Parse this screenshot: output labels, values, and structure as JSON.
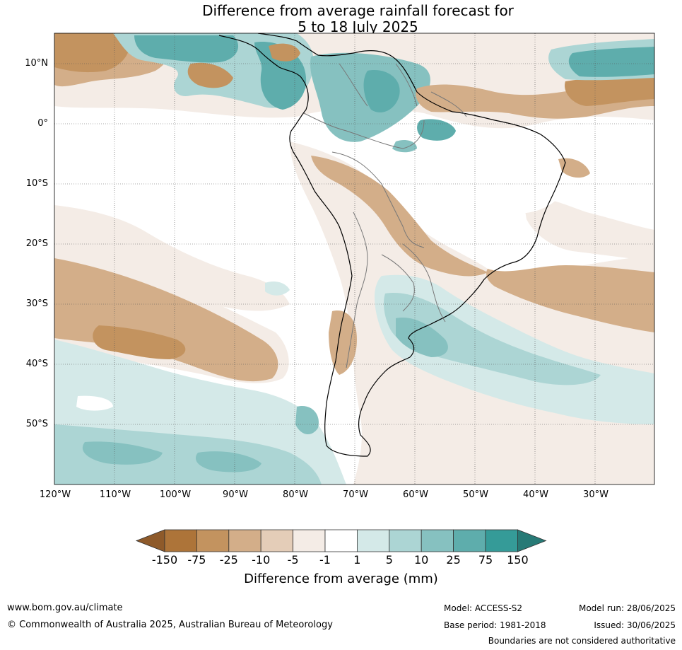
{
  "title_line1": "Difference from average rainfall forecast for",
  "title_line2": "5 to 18 July 2025",
  "lat_labels": [
    "10°N",
    "0°",
    "10°S",
    "20°S",
    "30°S",
    "40°S",
    "50°S"
  ],
  "lon_labels": [
    "120°W",
    "110°W",
    "100°W",
    "90°W",
    "80°W",
    "70°W",
    "60°W",
    "50°W",
    "40°W",
    "30°W"
  ],
  "colorbar": {
    "ticks": [
      "-150",
      "-75",
      "-25",
      "-10",
      "-5",
      "-1",
      "1",
      "5",
      "10",
      "25",
      "75",
      "150"
    ],
    "colors": [
      "#8e5a2a",
      "#ad7439",
      "#c3935f",
      "#d3ae89",
      "#e4cdb8",
      "#f4ece6",
      "#ffffff",
      "#d4e9e8",
      "#acd5d4",
      "#86c1c0",
      "#5eadac",
      "#359b98",
      "#277a76"
    ],
    "label": "Difference from average (mm)"
  },
  "footer": {
    "website": "www.bom.gov.au/climate",
    "copyright": "© Commonwealth of Australia 2025, Australian Bureau of Meteorology",
    "model": "Model: ACCESS-S2",
    "base_period": "Base period: 1981-2018",
    "model_run": "Model run: 28/06/2025",
    "issued": "Issued: 30/06/2025",
    "disclaimer": "Boundaries are not considered authoritative"
  }
}
